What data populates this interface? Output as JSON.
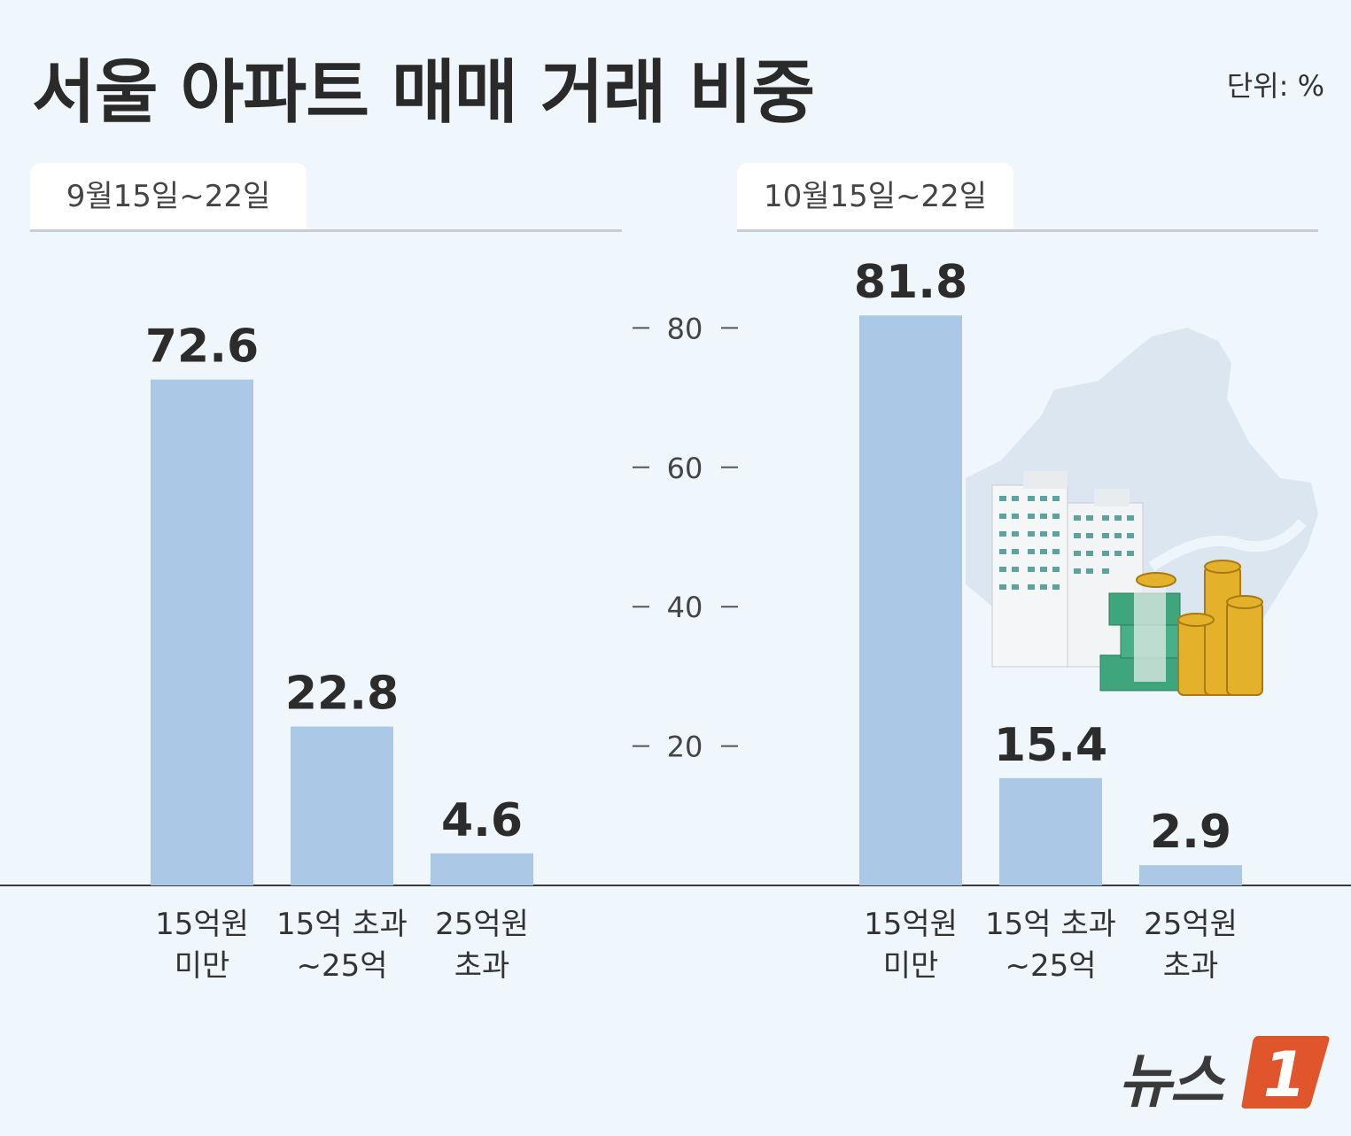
{
  "title": "서울 아파트 매매 거래 비중",
  "unit": "단위: %",
  "colors": {
    "bar": "#abc8e6",
    "background": "#eff7fd",
    "logo_accent": "#e0552b"
  },
  "logo": {
    "text": "뉴스",
    "mark": "1"
  },
  "illustration": {
    "description_icon": "apartment-buildings-with-money-icon"
  },
  "chart_data": [
    {
      "type": "bar",
      "title": "9월15일~22일",
      "categories": [
        "15억원\n미만",
        "15억 초과\n~25억",
        "25억원\n초과"
      ],
      "values": [
        72.6,
        22.8,
        4.6
      ],
      "ylim": [
        0,
        100
      ],
      "yticks": [
        20,
        40,
        60,
        80
      ],
      "grid": false
    },
    {
      "type": "bar",
      "title": "10월15일~22일",
      "categories": [
        "15억원\n미만",
        "15억 초과\n~25억",
        "25억원\n초과"
      ],
      "values": [
        81.8,
        15.4,
        2.9
      ],
      "ylim": [
        0,
        100
      ],
      "yticks": [
        20,
        40,
        60,
        80
      ],
      "grid": false
    }
  ]
}
